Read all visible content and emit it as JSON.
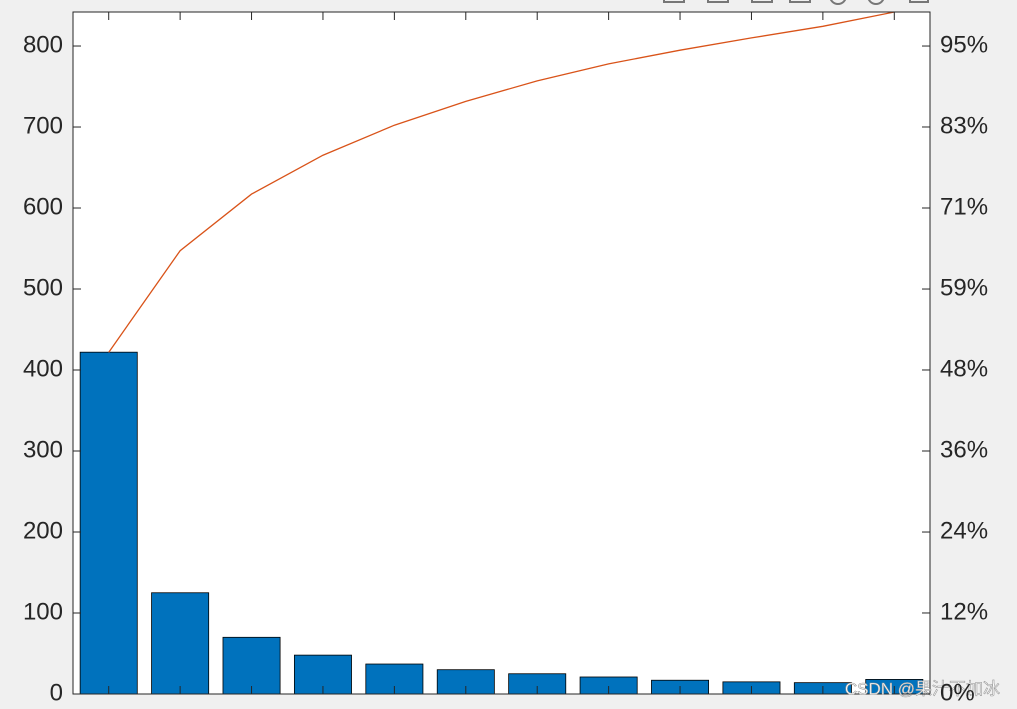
{
  "chart_data": {
    "type": "pareto",
    "categories": [
      null,
      null,
      null,
      null,
      null,
      null,
      null,
      null,
      null,
      null,
      null,
      null
    ],
    "series": [
      {
        "type": "bar",
        "color": "#0072bd",
        "values": [
          422,
          125,
          70,
          48,
          37,
          30,
          25,
          21,
          17,
          15,
          14,
          18
        ]
      },
      {
        "type": "line",
        "axis": "y2",
        "color": "#d95319",
        "values": [
          50.1,
          65.0,
          73.3,
          79.0,
          83.4,
          86.9,
          89.9,
          92.4,
          94.4,
          96.2,
          97.9,
          100
        ]
      }
    ],
    "ylim": [
      0,
      842
    ],
    "yticks": [
      0,
      100,
      200,
      300,
      400,
      500,
      600,
      700,
      800
    ],
    "y2lim": [
      0,
      100
    ],
    "y2ticks": [
      {
        "value": 0,
        "label": "0%"
      },
      {
        "value": 11.88,
        "label": "12%"
      },
      {
        "value": 23.75,
        "label": "24%"
      },
      {
        "value": 35.63,
        "label": "36%"
      },
      {
        "value": 47.51,
        "label": "48%"
      },
      {
        "value": 59.38,
        "label": "59%"
      },
      {
        "value": 71.26,
        "label": "71%"
      },
      {
        "value": 83.14,
        "label": "83%"
      },
      {
        "value": 95.01,
        "label": "95%"
      }
    ],
    "watermark": "CSDN @果汁不加冰"
  }
}
